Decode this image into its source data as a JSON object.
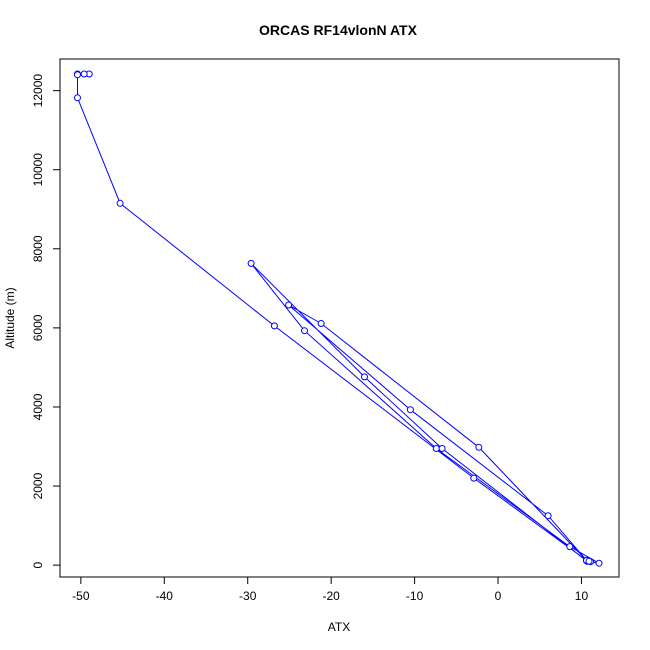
{
  "chart_data": {
    "type": "line",
    "title": "ORCAS RF14vlonN ATX",
    "xlabel": "ATX",
    "ylabel": "Altitude (m)",
    "xlim": [
      -52.5,
      14.5
    ],
    "ylim": [
      -300,
      12800
    ],
    "x_ticks": [
      -50,
      -40,
      -30,
      -20,
      -10,
      0,
      10
    ],
    "x_tick_labels": [
      "-50",
      "-40",
      "-30",
      "-20",
      "-10",
      "0",
      "10"
    ],
    "y_ticks": [
      0,
      2000,
      4000,
      6000,
      8000,
      10000,
      12000
    ],
    "y_tick_labels": [
      "0",
      "2000",
      "4000",
      "6000",
      "8000",
      "10000",
      "12000"
    ],
    "grid": false,
    "series": [
      {
        "color": "#0000ff",
        "marker": "open-circle",
        "x": [
          -49.0,
          -49.6,
          -50.4,
          -50.4,
          -50.4,
          -45.3,
          -26.8,
          -2.9,
          10.6,
          10.7,
          10.8,
          11.1,
          12.1,
          8.6,
          -7.4,
          -23.2,
          -29.6,
          -16.0,
          -6.7,
          10.6,
          10.7,
          6.0,
          -10.5,
          -25.1,
          -21.2,
          -2.3,
          10.6,
          10.9
        ],
        "y": [
          12420,
          12420,
          12420,
          12400,
          11820,
          9150,
          6050,
          2200,
          120,
          100,
          110,
          90,
          50,
          470,
          2950,
          5930,
          7630,
          4760,
          2950,
          110,
          100,
          1250,
          3930,
          6580,
          6110,
          2980,
          120,
          100
        ]
      }
    ]
  }
}
